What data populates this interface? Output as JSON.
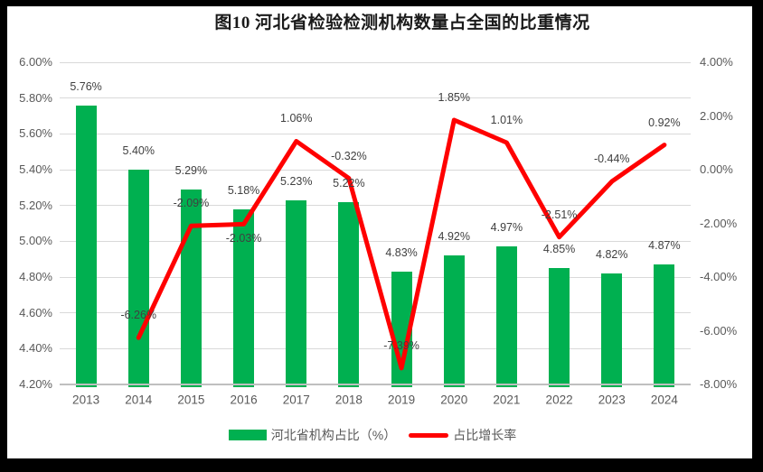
{
  "frame": {
    "border_color": "#000000",
    "canvas_color": "#FFFFFF"
  },
  "chart_data": {
    "type": "combo",
    "title": "图10  河北省检验检测机构数量占全国的比重情况",
    "categories": [
      "2013",
      "2014",
      "2015",
      "2016",
      "2017",
      "2018",
      "2019",
      "2020",
      "2021",
      "2022",
      "2023",
      "2024"
    ],
    "series": [
      {
        "name": "河北省机构占比（%）",
        "chart_type": "bar",
        "axis": "left",
        "color": "#00B050",
        "values": [
          5.76,
          5.4,
          5.29,
          5.18,
          5.23,
          5.22,
          4.83,
          4.92,
          4.97,
          4.85,
          4.82,
          4.87
        ],
        "labels": [
          "5.76%",
          "5.40%",
          "5.29%",
          "5.18%",
          "5.23%",
          "5.22%",
          "4.83%",
          "4.92%",
          "4.97%",
          "4.85%",
          "4.82%",
          "4.87%"
        ]
      },
      {
        "name": "占比增长率",
        "chart_type": "line",
        "axis": "right",
        "color": "#FF0000",
        "values": [
          null,
          -6.26,
          -2.09,
          -2.03,
          1.06,
          -0.32,
          -7.39,
          1.85,
          1.01,
          -2.51,
          -0.44,
          0.92
        ],
        "labels": [
          null,
          "-6.26%",
          "-2.09%",
          "-2.03%",
          "1.06%",
          "-0.32%",
          "-7.39%",
          "1.85%",
          "1.01%",
          "-2.51%",
          "-0.44%",
          "0.92%"
        ],
        "label_positions": [
          null,
          "above",
          "above",
          "below",
          "above",
          "above",
          "above",
          "above",
          "above",
          "above",
          "above",
          "above"
        ]
      }
    ],
    "left_axis": {
      "min": 4.2,
      "max": 6.0,
      "step": 0.2,
      "ticks": [
        "6.00%",
        "5.80%",
        "5.60%",
        "5.40%",
        "5.20%",
        "5.00%",
        "4.80%",
        "4.60%",
        "4.40%",
        "4.20%"
      ]
    },
    "right_axis": {
      "min": -8.0,
      "max": 4.0,
      "step": 2.0,
      "ticks": [
        "4.00%",
        "2.00%",
        "0.00%",
        "-2.00%",
        "-4.00%",
        "-6.00%",
        "-8.00%"
      ]
    },
    "grid": true,
    "legend_position": "bottom",
    "colors": {
      "grid": "#D9D9D9",
      "axis_line": "#BFBFBF",
      "tick_label": "#595959",
      "data_label": "#404040",
      "title": "#1A1A1A"
    }
  }
}
